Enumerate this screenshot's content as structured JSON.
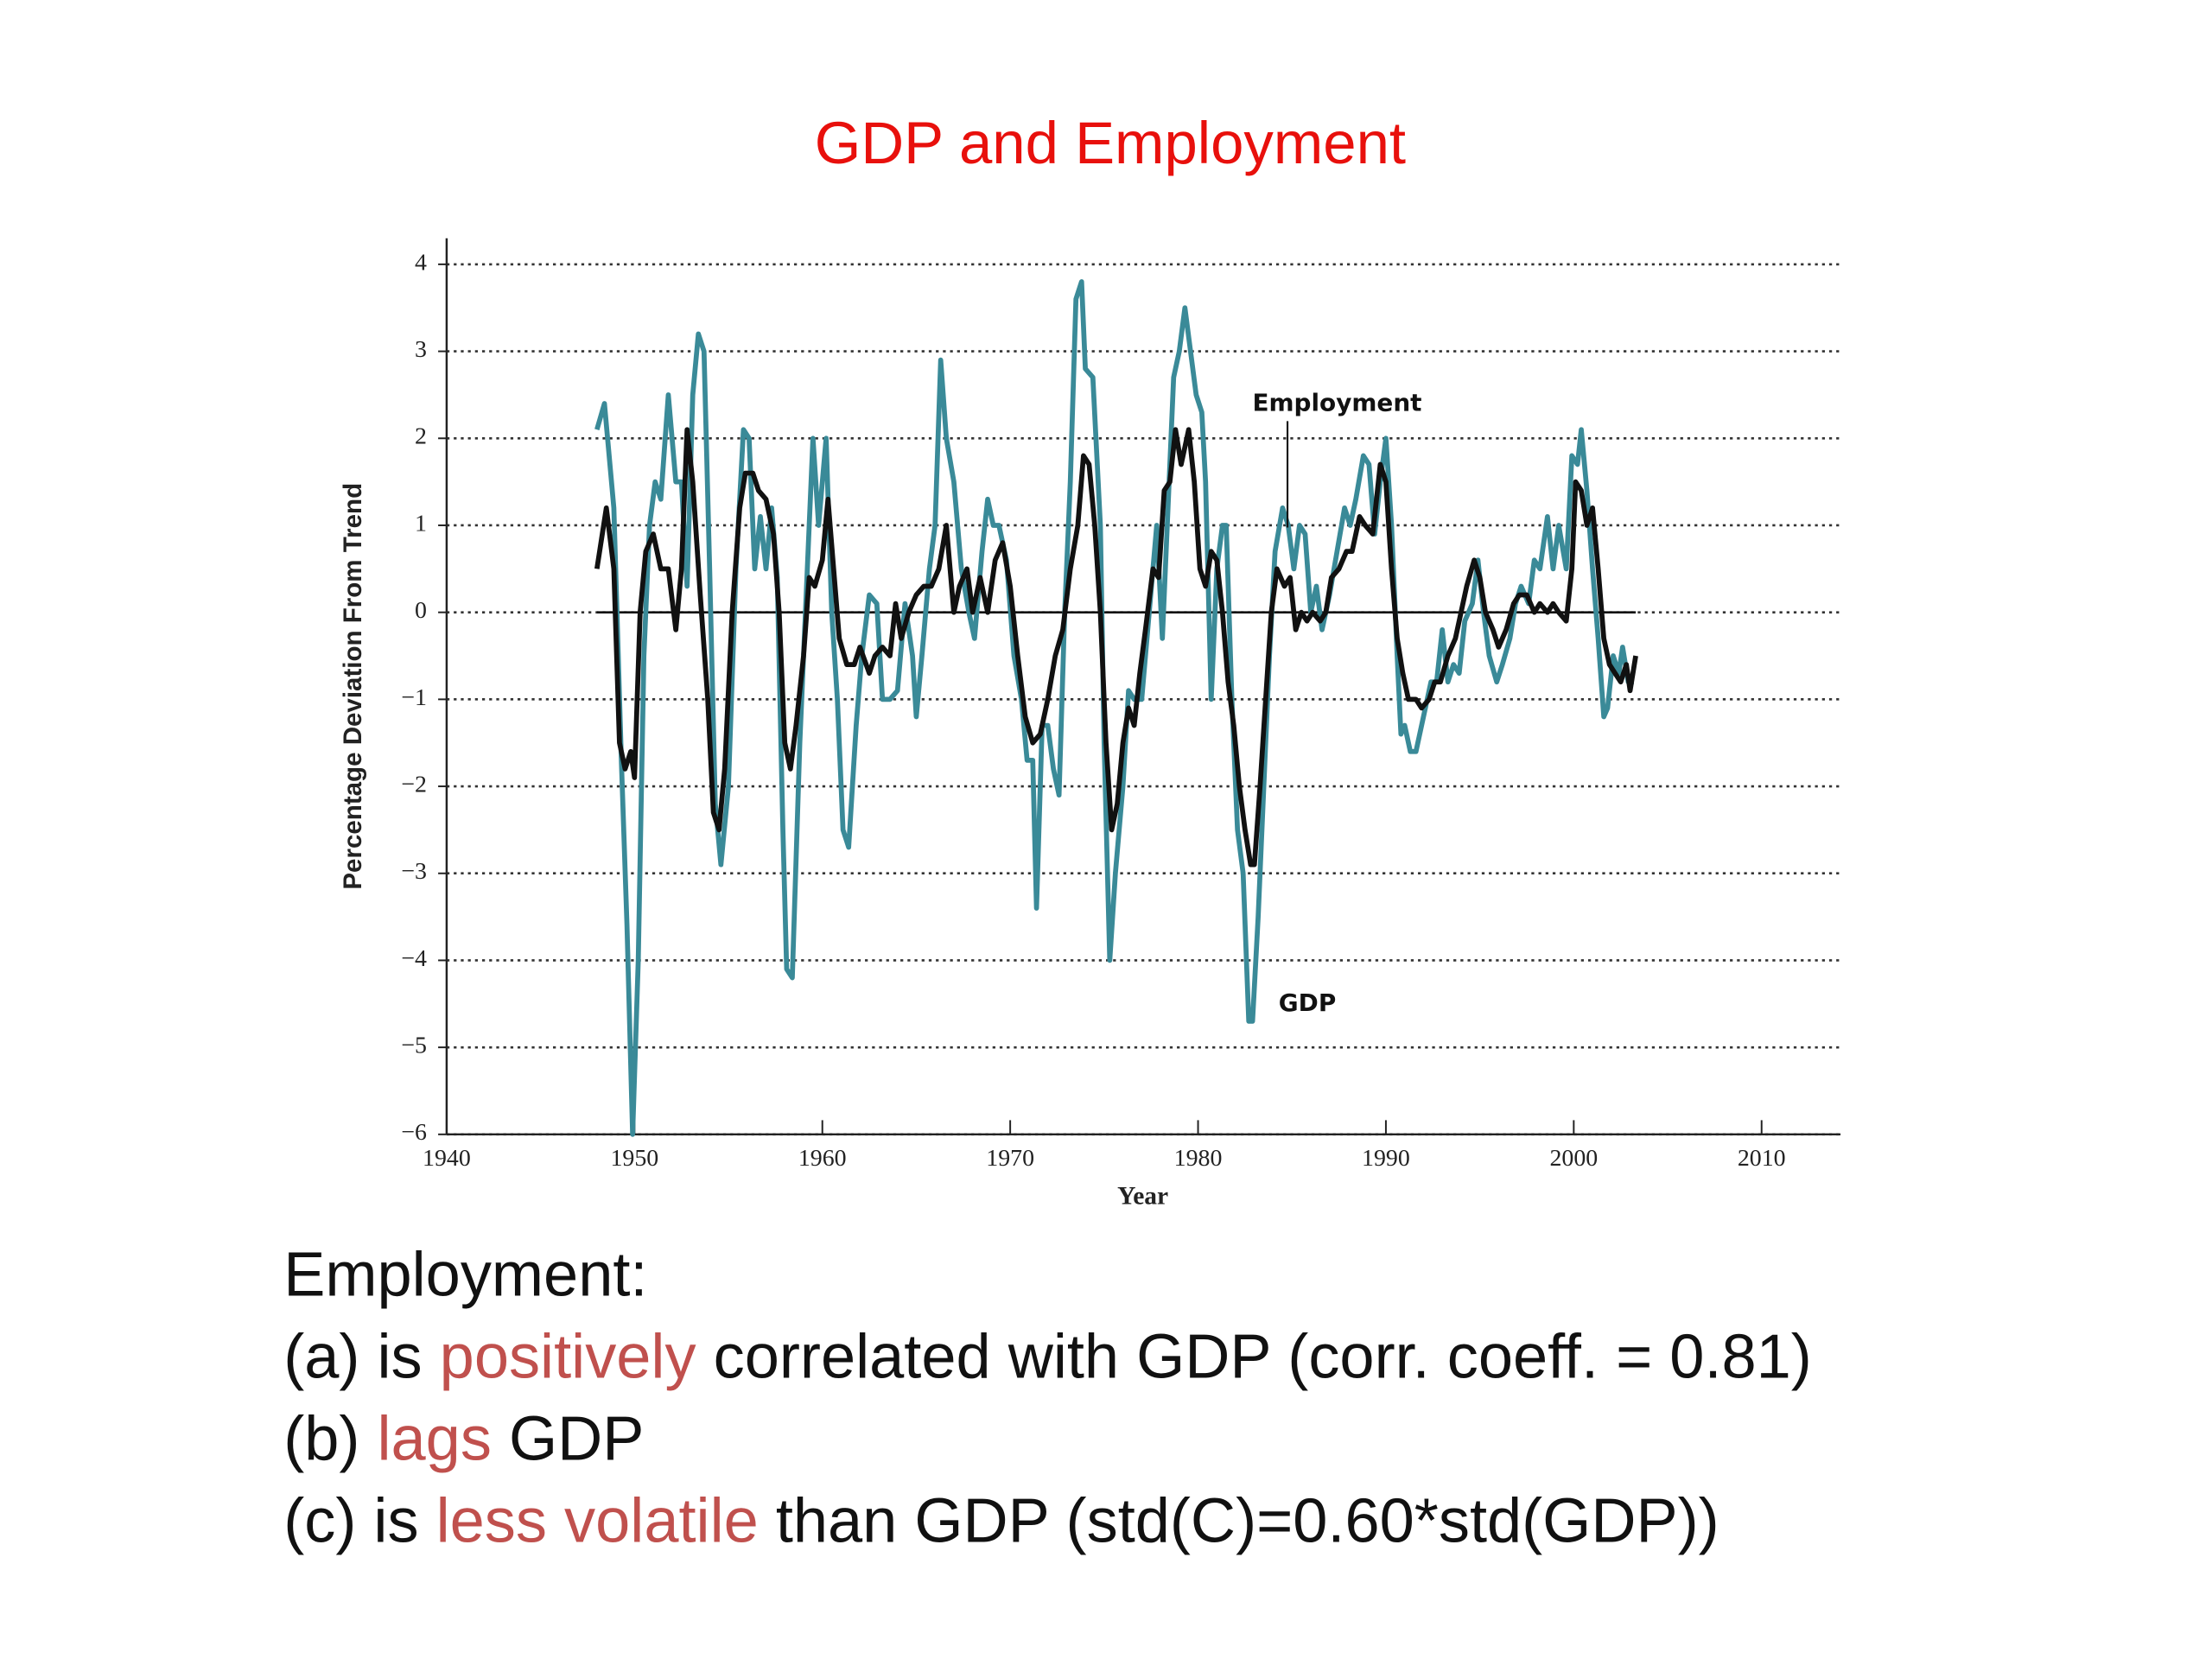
{
  "chart_data": {
    "type": "line",
    "title": "GDP and Employment",
    "x_label": "Year",
    "y_label": "Percentage Deviation From Trend",
    "xlim": [
      1940,
      2014.2
    ],
    "ylim": [
      -6,
      4.3
    ],
    "xticks": [
      1940,
      1950,
      1960,
      1970,
      1980,
      1990,
      2000,
      2010
    ],
    "yticks": [
      {
        "value": -6,
        "label": "−6"
      },
      {
        "value": -5,
        "label": "−5"
      },
      {
        "value": -4,
        "label": "−4"
      },
      {
        "value": -3,
        "label": "−3"
      },
      {
        "value": -2,
        "label": "−2"
      },
      {
        "value": -1,
        "label": "−1"
      },
      0,
      1,
      2,
      3,
      4
    ],
    "grid": true,
    "series": [
      {
        "name": "Employment",
        "color": "#111111",
        "x": [
          1948.0,
          1948.5,
          1948.9,
          1949.2,
          1949.5,
          1949.8,
          1950.0,
          1950.3,
          1950.6,
          1951.0,
          1951.4,
          1951.8,
          1952.2,
          1952.5,
          1952.8,
          1953.1,
          1953.5,
          1953.9,
          1954.2,
          1954.5,
          1954.8,
          1955.2,
          1955.6,
          1955.9,
          1956.3,
          1956.6,
          1957.0,
          1957.4,
          1957.7,
          1958.0,
          1958.3,
          1958.6,
          1959.0,
          1959.3,
          1959.6,
          1960.0,
          1960.3,
          1960.6,
          1960.9,
          1961.3,
          1961.7,
          1962.0,
          1962.5,
          1962.8,
          1963.2,
          1963.6,
          1963.9,
          1964.2,
          1964.6,
          1965.0,
          1965.4,
          1965.8,
          1966.2,
          1966.6,
          1967.0,
          1967.3,
          1967.7,
          1968.0,
          1968.4,
          1968.8,
          1969.2,
          1969.6,
          1970.0,
          1970.4,
          1970.8,
          1971.2,
          1971.6,
          1972.0,
          1972.4,
          1972.8,
          1973.2,
          1973.6,
          1973.9,
          1974.2,
          1974.5,
          1974.8,
          1975.1,
          1975.4,
          1975.7,
          1976.0,
          1976.3,
          1976.6,
          1976.9,
          1977.2,
          1977.6,
          1977.9,
          1978.2,
          1978.5,
          1978.8,
          1979.1,
          1979.5,
          1979.8,
          1980.1,
          1980.4,
          1980.7,
          1981.0,
          1981.3,
          1981.6,
          1981.9,
          1982.2,
          1982.5,
          1982.8,
          1983.0,
          1983.3,
          1983.6,
          1983.9,
          1984.2,
          1984.6,
          1984.9,
          1985.2,
          1985.5,
          1985.8,
          1986.1,
          1986.5,
          1986.8,
          1987.1,
          1987.5,
          1987.9,
          1988.2,
          1988.6,
          1988.9,
          1989.3,
          1989.7,
          1990.0,
          1990.3,
          1990.6,
          1990.9,
          1991.2,
          1991.6,
          1991.9,
          1992.3,
          1992.6,
          1992.9,
          1993.3,
          1993.7,
          1994.0,
          1994.3,
          1994.7,
          1995.0,
          1995.3,
          1995.7,
          1996.0,
          1996.4,
          1996.8,
          1997.1,
          1997.5,
          1997.9,
          1998.2,
          1998.6,
          1998.9,
          1999.2,
          1999.6,
          1999.9,
          2000.1,
          2000.4,
          2000.7,
          2001.0,
          2001.3,
          2001.6,
          2001.9,
          2002.2,
          2002.5,
          2002.8,
          2003.0,
          2003.3
        ],
        "values": [
          0.5,
          1.2,
          0.5,
          -1.5,
          -1.8,
          -1.6,
          -1.9,
          0.0,
          0.7,
          0.9,
          0.5,
          0.5,
          -0.2,
          0.5,
          2.1,
          1.5,
          0.2,
          -1.0,
          -2.3,
          -2.5,
          -1.8,
          0.0,
          1.2,
          1.6,
          1.6,
          1.4,
          1.3,
          0.9,
          0.0,
          -1.5,
          -1.8,
          -1.3,
          -0.5,
          0.4,
          0.3,
          0.6,
          1.3,
          0.5,
          -0.3,
          -0.6,
          -0.6,
          -0.4,
          -0.7,
          -0.5,
          -0.4,
          -0.5,
          0.1,
          -0.3,
          0.0,
          0.2,
          0.3,
          0.3,
          0.5,
          1.0,
          0.0,
          0.3,
          0.5,
          0.0,
          0.4,
          0.0,
          0.6,
          0.8,
          0.3,
          -0.5,
          -1.2,
          -1.5,
          -1.4,
          -1.0,
          -0.5,
          -0.2,
          0.5,
          1.0,
          1.8,
          1.7,
          1.0,
          0.0,
          -1.5,
          -2.5,
          -2.2,
          -1.5,
          -1.1,
          -1.3,
          -0.7,
          -0.2,
          0.5,
          0.4,
          1.4,
          1.5,
          2.1,
          1.7,
          2.1,
          1.5,
          0.5,
          0.3,
          0.7,
          0.6,
          0.0,
          -0.8,
          -1.3,
          -2.0,
          -2.5,
          -2.9,
          -2.9,
          -2.0,
          -1.0,
          0.0,
          0.5,
          0.3,
          0.4,
          -0.2,
          0.0,
          -0.1,
          0.0,
          -0.1,
          0.0,
          0.4,
          0.5,
          0.7,
          0.7,
          1.1,
          1.0,
          0.9,
          1.7,
          1.5,
          0.5,
          -0.3,
          -0.7,
          -1.0,
          -1.0,
          -1.1,
          -1.0,
          -0.8,
          -0.8,
          -0.5,
          -0.3,
          0.0,
          0.3,
          0.6,
          0.4,
          0.0,
          -0.2,
          -0.4,
          -0.2,
          0.1,
          0.2,
          0.2,
          0.0,
          0.1,
          0.0,
          0.1,
          0.0,
          -0.1,
          0.5,
          1.5,
          1.4,
          1.0,
          1.2,
          0.5,
          -0.3,
          -0.6,
          -0.7,
          -0.8,
          -0.6,
          -0.9,
          -0.5
        ]
      },
      {
        "name": "GDP",
        "color": "#3a8a98",
        "x": [
          1948.0,
          1948.4,
          1948.9,
          1949.3,
          1949.6,
          1949.9,
          1950.2,
          1950.5,
          1950.8,
          1951.1,
          1951.4,
          1951.8,
          1952.2,
          1952.5,
          1952.8,
          1953.1,
          1953.4,
          1953.7,
          1954.0,
          1954.3,
          1954.6,
          1955.0,
          1955.4,
          1955.8,
          1956.1,
          1956.4,
          1956.7,
          1957.0,
          1957.3,
          1957.6,
          1957.9,
          1958.1,
          1958.4,
          1958.8,
          1959.2,
          1959.5,
          1959.8,
          1960.2,
          1960.5,
          1960.8,
          1961.1,
          1961.4,
          1961.8,
          1962.1,
          1962.5,
          1962.9,
          1963.2,
          1963.6,
          1964.0,
          1964.4,
          1964.8,
          1965.0,
          1965.3,
          1965.7,
          1966.0,
          1966.3,
          1966.6,
          1967.0,
          1967.4,
          1967.8,
          1968.1,
          1968.5,
          1968.8,
          1969.1,
          1969.4,
          1969.8,
          1970.2,
          1970.6,
          1970.9,
          1971.2,
          1971.4,
          1971.7,
          1972.0,
          1972.3,
          1972.6,
          1972.9,
          1973.2,
          1973.5,
          1973.8,
          1974.0,
          1974.4,
          1974.8,
          1975.0,
          1975.3,
          1975.6,
          1976.0,
          1976.3,
          1976.6,
          1977.0,
          1977.4,
          1977.8,
          1978.1,
          1978.4,
          1978.7,
          1979.0,
          1979.3,
          1979.6,
          1979.9,
          1980.2,
          1980.4,
          1980.7,
          1981.0,
          1981.3,
          1981.5,
          1981.8,
          1982.1,
          1982.4,
          1982.7,
          1982.9,
          1983.2,
          1983.5,
          1983.8,
          1984.1,
          1984.5,
          1984.8,
          1985.1,
          1985.4,
          1985.7,
          1986.0,
          1986.3,
          1986.6,
          1987.0,
          1987.4,
          1987.8,
          1988.1,
          1988.4,
          1988.8,
          1989.1,
          1989.4,
          1989.7,
          1990.0,
          1990.3,
          1990.6,
          1990.8,
          1991.0,
          1991.3,
          1991.6,
          1992.0,
          1992.4,
          1992.7,
          1993.0,
          1993.3,
          1993.6,
          1993.9,
          1994.2,
          1994.6,
          1994.9,
          1995.2,
          1995.5,
          1995.9,
          1996.2,
          1996.6,
          1996.9,
          1997.2,
          1997.6,
          1997.9,
          1998.2,
          1998.6,
          1998.9,
          1999.2,
          1999.6,
          1999.9,
          2000.2,
          2000.4,
          2000.7,
          2001.0,
          2001.3,
          2001.6,
          2001.8,
          2002.1,
          2002.4,
          2002.6,
          2002.9,
          2003.2
        ],
        "values": [
          2.1,
          2.4,
          1.2,
          -1.7,
          -3.6,
          -6.0,
          -4.0,
          -0.5,
          1.0,
          1.5,
          1.3,
          2.5,
          1.5,
          1.5,
          0.3,
          2.5,
          3.2,
          3.0,
          0.5,
          -2.2,
          -2.9,
          -2.0,
          0.5,
          2.1,
          2.0,
          0.5,
          1.1,
          0.5,
          1.2,
          0.4,
          -2.5,
          -4.1,
          -4.2,
          -1.5,
          0.5,
          2.0,
          1.0,
          2.0,
          0.0,
          -1.0,
          -2.5,
          -2.7,
          -1.3,
          -0.5,
          0.2,
          0.1,
          -1.0,
          -1.0,
          -0.9,
          0.1,
          -0.5,
          -1.2,
          -0.5,
          0.5,
          1.0,
          2.9,
          2.0,
          1.5,
          0.5,
          0.0,
          -0.3,
          0.7,
          1.3,
          1.0,
          1.0,
          0.6,
          -0.5,
          -1.0,
          -1.7,
          -1.7,
          -3.4,
          -1.3,
          -1.3,
          -1.8,
          -2.1,
          0.0,
          1.5,
          3.6,
          3.8,
          2.8,
          2.7,
          1.0,
          -1.5,
          -4.0,
          -3.0,
          -2.0,
          -0.9,
          -1.0,
          -1.0,
          0.0,
          1.0,
          -0.3,
          1.2,
          2.7,
          3.0,
          3.5,
          3.0,
          2.5,
          2.3,
          1.5,
          -1.0,
          0.5,
          1.0,
          1.0,
          -1.0,
          -2.5,
          -3.0,
          -4.7,
          -4.7,
          -3.5,
          -2.0,
          -0.5,
          0.7,
          1.2,
          1.0,
          0.5,
          1.0,
          0.9,
          0.0,
          0.3,
          -0.2,
          0.2,
          0.7,
          1.2,
          1.0,
          1.3,
          1.8,
          1.7,
          0.9,
          1.5,
          2.0,
          1.0,
          -0.5,
          -1.4,
          -1.3,
          -1.6,
          -1.6,
          -1.2,
          -0.8,
          -0.8,
          -0.2,
          -0.8,
          -0.6,
          -0.7,
          -0.1,
          0.1,
          0.6,
          0.0,
          -0.5,
          -0.8,
          -0.6,
          -0.3,
          0.1,
          0.3,
          0.1,
          0.6,
          0.5,
          1.1,
          0.5,
          1.0,
          0.5,
          1.8,
          1.7,
          2.1,
          1.4,
          0.5,
          -0.3,
          -1.2,
          -1.1,
          -0.5,
          -0.7,
          -0.4,
          -0.8,
          -0.8
        ]
      }
    ]
  },
  "notes": {
    "heading": "Employment:",
    "highlight_color": "#c0504d",
    "lines": [
      [
        {
          "text": "(a) is "
        },
        {
          "text": "positively",
          "highlight": true
        },
        {
          "text": " correlated with GDP (corr. coeff. = 0.81)"
        }
      ],
      [
        {
          "text": "(b) "
        },
        {
          "text": "lags",
          "highlight": true
        },
        {
          "text": " GDP"
        }
      ],
      [
        {
          "text": "(c) is "
        },
        {
          "text": "less volatile",
          "highlight": true
        },
        {
          "text": " than GDP (std(C)=0.60*std(GDP))"
        }
      ]
    ]
  }
}
